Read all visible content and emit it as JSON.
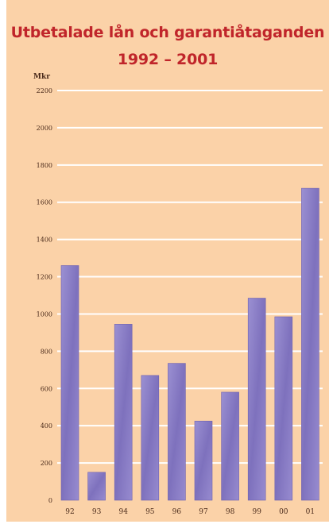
{
  "chart_data": {
    "type": "bar",
    "title": "Utbetalade lån och garantiåtaganden",
    "subtitle": "1992 – 2001",
    "ylabel": "Mkr",
    "xlabel": "",
    "categories": [
      "92",
      "93",
      "94",
      "95",
      "96",
      "97",
      "98",
      "99",
      "00",
      "01"
    ],
    "values": [
      1260,
      150,
      945,
      670,
      735,
      425,
      580,
      1085,
      985,
      1675
    ],
    "ylim": [
      0,
      2200
    ],
    "yticks": [
      0,
      200,
      400,
      600,
      800,
      1000,
      1200,
      1400,
      1600,
      1800,
      2000,
      2200
    ],
    "grid": true,
    "legend": "none",
    "colors": {
      "background": "#fbd2a8",
      "bar": "#8f82c8",
      "bar_dark": "#6f62b0",
      "gridline": "#ffffff",
      "title": "#c0252a",
      "tick_text": "#4a2a1a"
    }
  }
}
